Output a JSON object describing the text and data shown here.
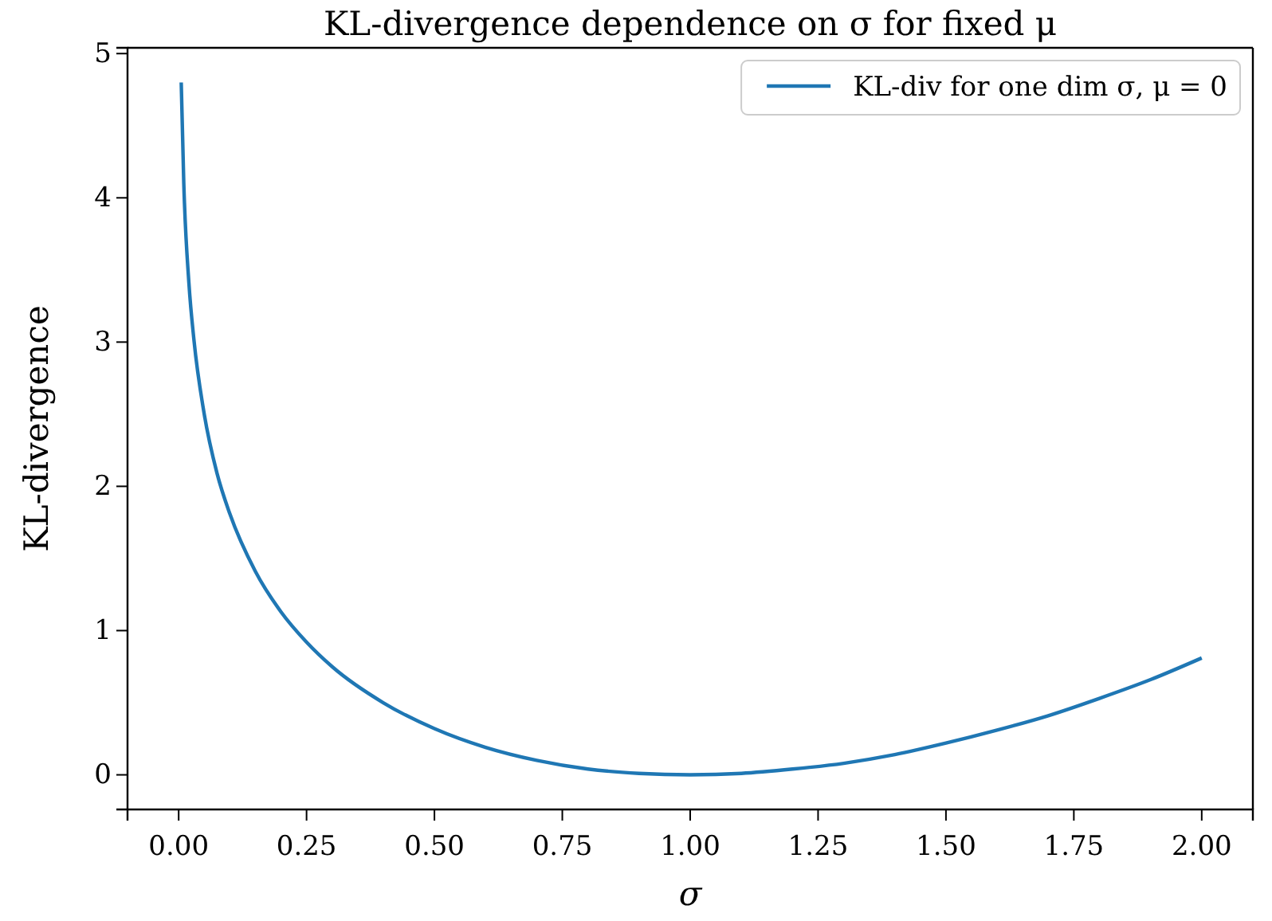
{
  "chart_data": {
    "type": "line",
    "title": "KL-divergence dependence on σ for fixed μ",
    "xlabel": "σ",
    "ylabel": "KL-divergence",
    "x": [
      0.005,
      0.01,
      0.02,
      0.03,
      0.05,
      0.075,
      0.1,
      0.15,
      0.2,
      0.25,
      0.3,
      0.4,
      0.5,
      0.6,
      0.7,
      0.8,
      0.9,
      1.0,
      1.1,
      1.2,
      1.3,
      1.4,
      1.5,
      1.6,
      1.7,
      1.8,
      1.9,
      2.0
    ],
    "series": [
      {
        "name": "KL-div for one dim σ, μ = 0",
        "color": "#1f77b4",
        "values": [
          4.8,
          4.1,
          3.41,
          3.01,
          2.5,
          2.09,
          1.81,
          1.41,
          1.13,
          0.92,
          0.75,
          0.5,
          0.32,
          0.19,
          0.1,
          0.04,
          0.01,
          0,
          0.01,
          0.04,
          0.08,
          0.14,
          0.22,
          0.31,
          0.41,
          0.53,
          0.66,
          0.81
        ]
      }
    ],
    "xlim": [
      -0.1,
      2.1
    ],
    "ylim": [
      -0.24,
      5.04
    ],
    "xticks": [
      {
        "value": 0,
        "label": "0.00"
      },
      {
        "value": 0.25,
        "label": "0.25"
      },
      {
        "value": 0.5,
        "label": "0.50"
      },
      {
        "value": 0.75,
        "label": "0.75"
      },
      {
        "value": 1,
        "label": "1.00"
      },
      {
        "value": 1.25,
        "label": "1.25"
      },
      {
        "value": 1.5,
        "label": "1.50"
      },
      {
        "value": 1.75,
        "label": "1.75"
      },
      {
        "value": 2,
        "label": "2.00"
      }
    ],
    "yticks": [
      0,
      1,
      2,
      3,
      4,
      5
    ],
    "legend": "top right",
    "grid": false,
    "line_style": "solid",
    "marker": "none"
  }
}
